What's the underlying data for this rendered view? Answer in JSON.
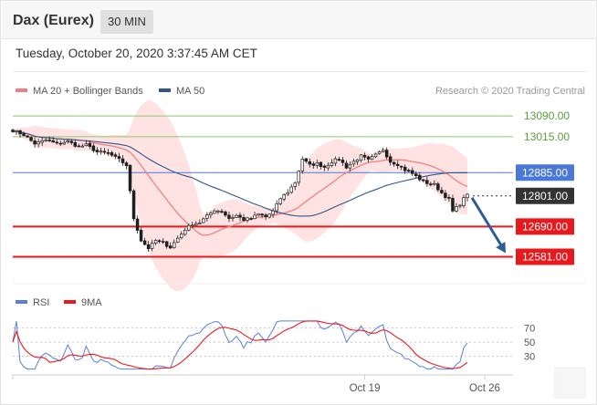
{
  "header": {
    "instrument": "Dax (Eurex)",
    "timeframe": "30 MIN",
    "datetime": "Tuesday, October 20, 2020 3:37:45 AM CET"
  },
  "colors": {
    "ma20": "#f08080",
    "ma50": "#30568c",
    "bollinger_fill": "#ffd9d9",
    "resistance": "#8cc870",
    "pivot": "#4a78d6",
    "support": "#e8191c",
    "current": "#333333",
    "arrow": "#2e5c9a",
    "rsi": "#5b7fdc",
    "rsi_ma": "#e8191c",
    "candle_up": "#1f1f1f",
    "candle_down": "#1f1f1f"
  },
  "chart_data": [
    {
      "type": "candlestick",
      "legend": [
        {
          "label": "MA 20 + Bollinger Bands",
          "color": "#f08080"
        },
        {
          "label": "MA 50",
          "color": "#30568c"
        }
      ],
      "legend_position": "top-left",
      "credit": "Research © 2020 Trading Central",
      "ylim": [
        12520,
        13120
      ],
      "levels": [
        {
          "value": 13090,
          "label": "13090.00",
          "kind": "resistance"
        },
        {
          "value": 13015,
          "label": "13015.00",
          "kind": "resistance"
        },
        {
          "value": 12885,
          "label": "12885.00",
          "kind": "pivot"
        },
        {
          "value": 12801,
          "label": "12801.00",
          "kind": "current"
        },
        {
          "value": 12690,
          "label": "12690.00",
          "kind": "support"
        },
        {
          "value": 12581,
          "label": "12581.00",
          "kind": "support"
        }
      ],
      "close_anchors": [
        [
          0,
          13038
        ],
        [
          3,
          13022
        ],
        [
          6,
          12990
        ],
        [
          9,
          13002
        ],
        [
          12,
          12990
        ],
        [
          15,
          12998
        ],
        [
          18,
          12978
        ],
        [
          20,
          12985
        ],
        [
          23,
          12960
        ],
        [
          26,
          12955
        ],
        [
          29,
          12932
        ],
        [
          31,
          12912
        ],
        [
          33,
          12720
        ],
        [
          35,
          12640
        ],
        [
          37,
          12612
        ],
        [
          39,
          12640
        ],
        [
          41,
          12630
        ],
        [
          43,
          12615
        ],
        [
          45,
          12648
        ],
        [
          47,
          12680
        ],
        [
          49,
          12700
        ],
        [
          51,
          12705
        ],
        [
          53,
          12728
        ],
        [
          55,
          12750
        ],
        [
          57,
          12745
        ],
        [
          59,
          12720
        ],
        [
          61,
          12730
        ],
        [
          63,
          12715
        ],
        [
          65,
          12720
        ],
        [
          67,
          12735
        ],
        [
          69,
          12725
        ],
        [
          71,
          12745
        ],
        [
          73,
          12792
        ],
        [
          75,
          12815
        ],
        [
          77,
          12850
        ],
        [
          79,
          12935
        ],
        [
          81,
          12912
        ],
        [
          83,
          12918
        ],
        [
          85,
          12905
        ],
        [
          87,
          12925
        ],
        [
          89,
          12935
        ],
        [
          91,
          12905
        ],
        [
          93,
          12925
        ],
        [
          95,
          12945
        ],
        [
          97,
          12930
        ],
        [
          99,
          12948
        ],
        [
          101,
          12968
        ],
        [
          103,
          12925
        ],
        [
          105,
          12915
        ],
        [
          107,
          12895
        ],
        [
          109,
          12882
        ],
        [
          111,
          12862
        ],
        [
          113,
          12848
        ],
        [
          115,
          12842
        ],
        [
          117,
          12812
        ],
        [
          119,
          12788
        ],
        [
          120,
          12745
        ],
        [
          122,
          12772
        ],
        [
          124,
          12810
        ]
      ],
      "forecast_arrow": {
        "from": 12801,
        "to": 12581
      }
    },
    {
      "type": "line",
      "legend": [
        {
          "label": "RSI",
          "color": "#5b7fdc"
        },
        {
          "label": "9MA",
          "color": "#e8191c"
        }
      ],
      "ylim": [
        5,
        85
      ],
      "levels": [
        70,
        50,
        30
      ],
      "tick_labels": [
        "70",
        "50",
        "30"
      ],
      "x_tick_labels": [
        "Oct 19",
        "Oct 26"
      ]
    }
  ]
}
